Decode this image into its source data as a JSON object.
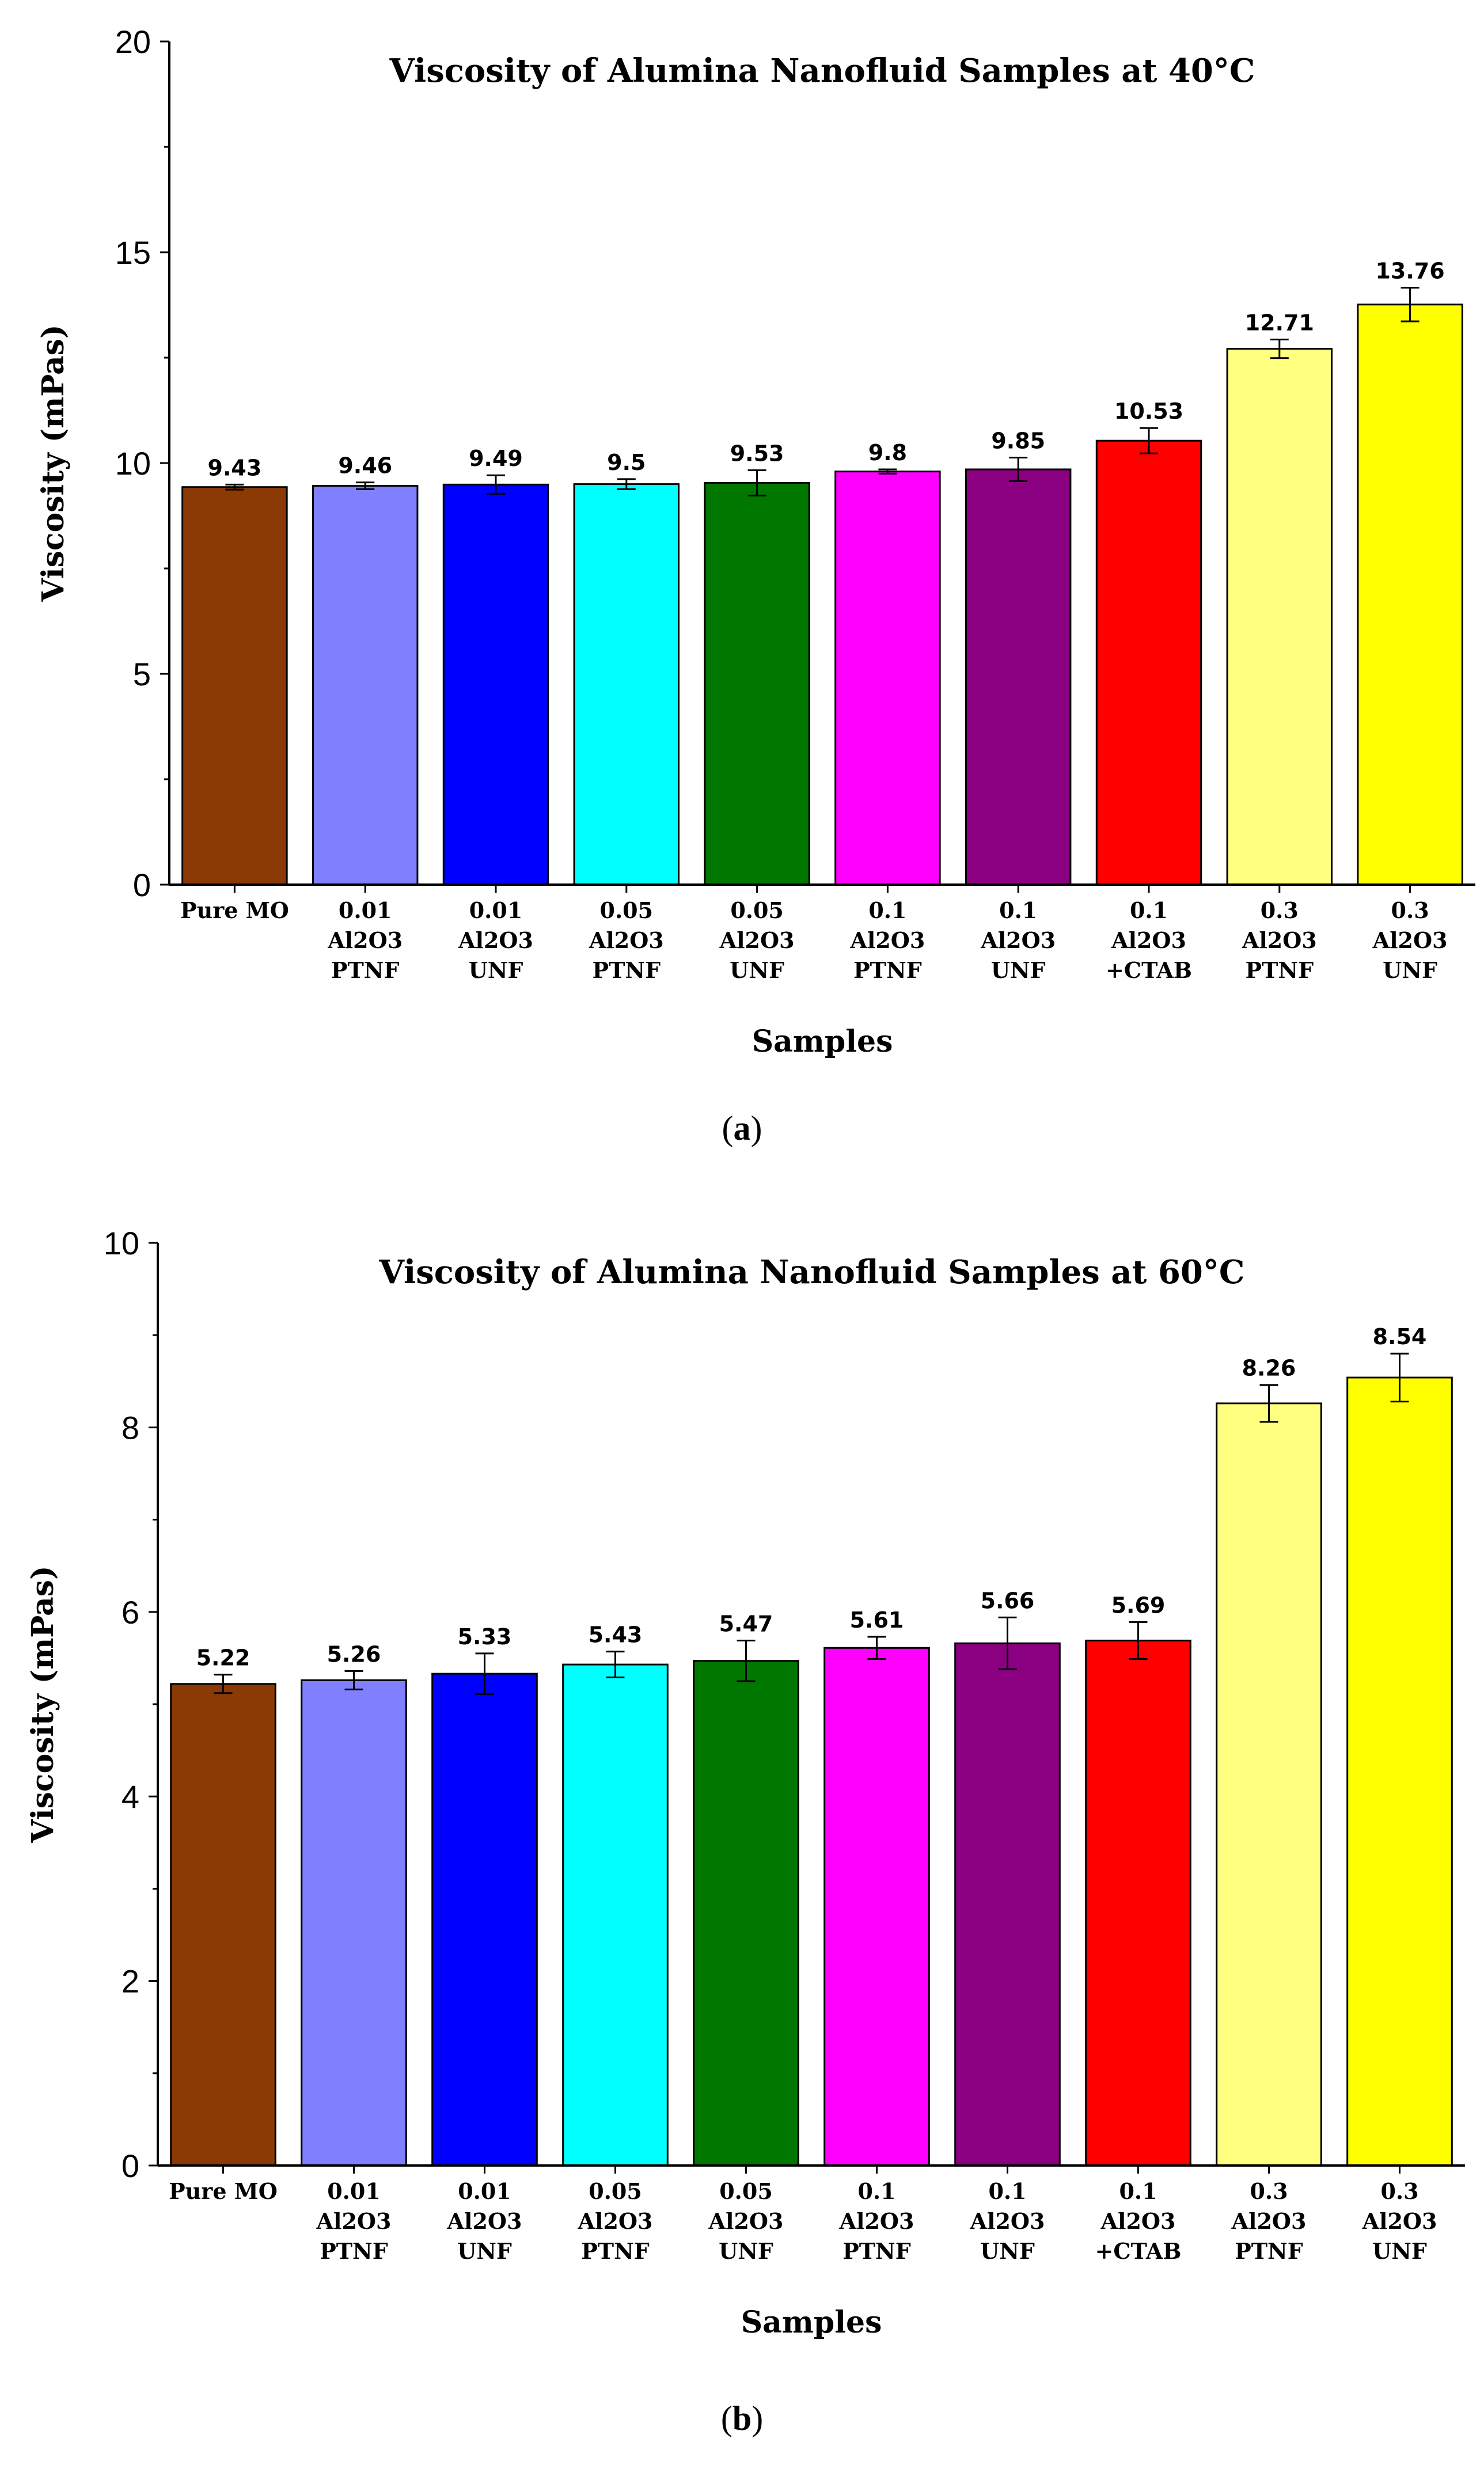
{
  "chart_data": [
    {
      "type": "bar",
      "title": "Viscosity of Alumina Nanofluid Samples at 40°C",
      "xlabel": "Samples",
      "ylabel": "Viscosity (mPas)",
      "ylim": [
        0,
        20
      ],
      "yticks": [
        0,
        5,
        10,
        15,
        20
      ],
      "categories": [
        [
          "Pure MO"
        ],
        [
          "0.01",
          "Al2O3",
          "PTNF"
        ],
        [
          "0.01",
          "Al2O3",
          "UNF"
        ],
        [
          "0.05",
          "Al2O3",
          "PTNF"
        ],
        [
          "0.05",
          "Al2O3",
          "UNF"
        ],
        [
          "0.1",
          "Al2O3",
          "PTNF"
        ],
        [
          "0.1",
          "Al2O3",
          "UNF"
        ],
        [
          "0.1",
          "Al2O3",
          "+CTAB"
        ],
        [
          "0.3",
          "Al2O3",
          "PTNF"
        ],
        [
          "0.3",
          "Al2O3",
          "UNF"
        ]
      ],
      "values": [
        9.43,
        9.46,
        9.49,
        9.5,
        9.53,
        9.8,
        9.85,
        10.53,
        12.71,
        13.76
      ],
      "value_labels": [
        "9.43",
        "9.46",
        "9.49",
        "9.5",
        "9.53",
        "9.8",
        "9.85",
        "10.53",
        "12.71",
        "13.76"
      ],
      "errors": [
        0.06,
        0.08,
        0.22,
        0.12,
        0.3,
        0.05,
        0.28,
        0.3,
        0.22,
        0.4
      ],
      "colors": [
        "#8B3A06",
        "#8080FF",
        "#0000FF",
        "#00FFFF",
        "#007800",
        "#FF00FF",
        "#8B0081",
        "#FF0000",
        "#FFFF80",
        "#FFFF00"
      ],
      "caption": "a"
    },
    {
      "type": "bar",
      "title": "Viscosity of Alumina Nanofluid Samples at 60°C",
      "xlabel": "Samples",
      "ylabel": "Viscosity (mPas)",
      "ylim": [
        0,
        10
      ],
      "yticks": [
        0,
        2,
        4,
        6,
        8,
        10
      ],
      "categories": [
        [
          "Pure MO"
        ],
        [
          "0.01",
          "Al2O3",
          "PTNF"
        ],
        [
          "0.01",
          "Al2O3",
          "UNF"
        ],
        [
          "0.05",
          "Al2O3",
          "PTNF"
        ],
        [
          "0.05",
          "Al2O3",
          "UNF"
        ],
        [
          "0.1",
          "Al2O3",
          "PTNF"
        ],
        [
          "0.1",
          "Al2O3",
          "UNF"
        ],
        [
          "0.1",
          "Al2O3",
          "+CTAB"
        ],
        [
          "0.3",
          "Al2O3",
          "PTNF"
        ],
        [
          "0.3",
          "Al2O3",
          "UNF"
        ]
      ],
      "values": [
        5.22,
        5.26,
        5.33,
        5.43,
        5.47,
        5.61,
        5.66,
        5.69,
        8.26,
        8.54
      ],
      "value_labels": [
        "5.22",
        "5.26",
        "5.33",
        "5.43",
        "5.47",
        "5.61",
        "5.66",
        "5.69",
        "8.26",
        "8.54"
      ],
      "errors": [
        0.1,
        0.1,
        0.22,
        0.14,
        0.22,
        0.12,
        0.28,
        0.2,
        0.2,
        0.26
      ],
      "colors": [
        "#8B3A06",
        "#8080FF",
        "#0000FF",
        "#00FFFF",
        "#007800",
        "#FF00FF",
        "#8B0081",
        "#FF0000",
        "#FFFF80",
        "#FFFF00"
      ],
      "caption": "b"
    }
  ]
}
